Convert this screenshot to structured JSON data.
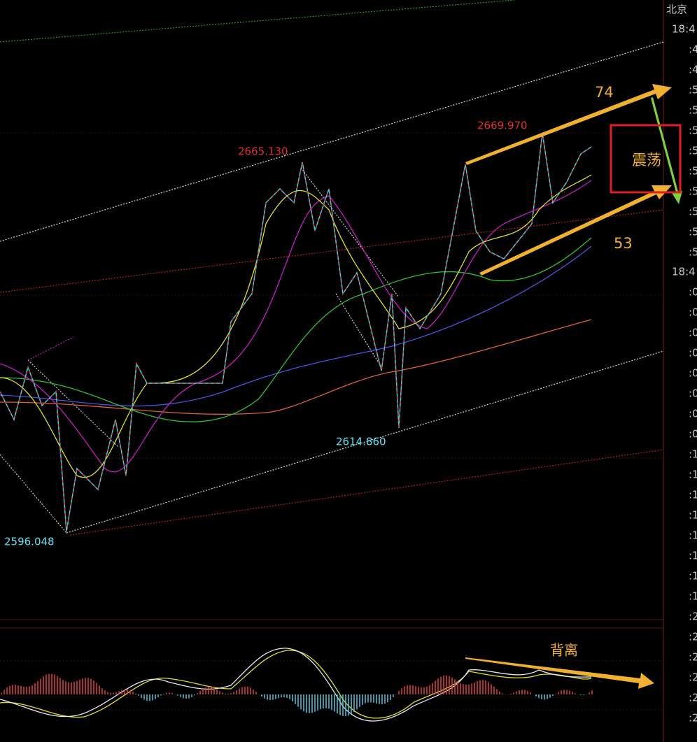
{
  "header": {
    "zone": "北京"
  },
  "time_axis": {
    "group_1": {
      "hour": "18:4",
      "marks": [
        ":4",
        ":4",
        ":5",
        ":5",
        ":5",
        ":5",
        ":5",
        ":5",
        ":5",
        ":5",
        ":5"
      ]
    },
    "group_2": {
      "hour": "18:4",
      "marks": [
        ":0",
        ":0",
        ":0",
        ":0",
        ":0",
        ":0",
        ":0",
        ":0",
        ":1",
        ":1",
        ":1",
        ":1",
        ":1",
        ":1",
        ":1",
        ":1",
        ":2",
        ":2",
        ":2",
        ":2",
        ":2",
        ":2"
      ]
    }
  },
  "price_labels": {
    "high_1": "2665.130",
    "high_2": "2669.970",
    "low_1": "2596.048",
    "low_2": "2614.860"
  },
  "annotations": {
    "upper_target": "74",
    "lower_target": "53",
    "range_note": "震荡",
    "divergence_note": "背离"
  }
}
